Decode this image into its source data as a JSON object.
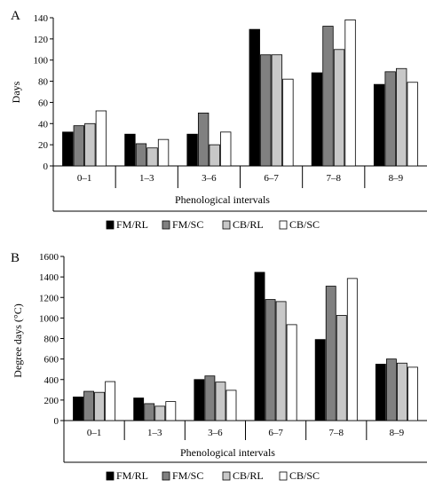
{
  "chart_data": [
    {
      "type": "bar",
      "panel_label": "A",
      "categories": [
        "0–1",
        "1–3",
        "3–6",
        "6–7",
        "7–8",
        "8–9"
      ],
      "series": [
        {
          "name": "FM/RL",
          "color": "#000000",
          "values": [
            32,
            30,
            30,
            129,
            88,
            77
          ]
        },
        {
          "name": "FM/SC",
          "color": "#808080",
          "values": [
            38,
            21,
            50,
            105,
            132,
            89
          ]
        },
        {
          "name": "CB/RL",
          "color": "#c8c8c8",
          "values": [
            40,
            17,
            20,
            105,
            110,
            92
          ]
        },
        {
          "name": "CB/SC",
          "color": "#ffffff",
          "values": [
            52,
            25,
            32,
            82,
            138,
            79
          ]
        }
      ],
      "xlabel": "Phenological intervals",
      "ylabel": "Days",
      "ylim": [
        0,
        140
      ],
      "yticks": [
        "0",
        "20",
        "40",
        "60",
        "80",
        "100",
        "120",
        "140"
      ],
      "grid": false,
      "legend": "bottom"
    },
    {
      "type": "bar",
      "panel_label": "B",
      "categories": [
        "0–1",
        "1–3",
        "3–6",
        "6–7",
        "7–8",
        "8–9"
      ],
      "series": [
        {
          "name": "FM/RL",
          "color": "#000000",
          "values": [
            230,
            220,
            400,
            1445,
            790,
            550
          ]
        },
        {
          "name": "FM/SC",
          "color": "#808080",
          "values": [
            285,
            165,
            435,
            1180,
            1310,
            600
          ]
        },
        {
          "name": "CB/RL",
          "color": "#c8c8c8",
          "values": [
            275,
            140,
            375,
            1160,
            1025,
            560
          ]
        },
        {
          "name": "CB/SC",
          "color": "#ffffff",
          "values": [
            380,
            185,
            295,
            935,
            1385,
            520
          ]
        }
      ],
      "xlabel": "Phenological intervals",
      "ylabel": "Degree days (°C)",
      "ylim": [
        0,
        1600
      ],
      "yticks": [
        "0",
        "200",
        "400",
        "600",
        "800",
        "1000",
        "1200",
        "1400",
        "1600"
      ],
      "grid": false,
      "legend": "bottom"
    }
  ]
}
